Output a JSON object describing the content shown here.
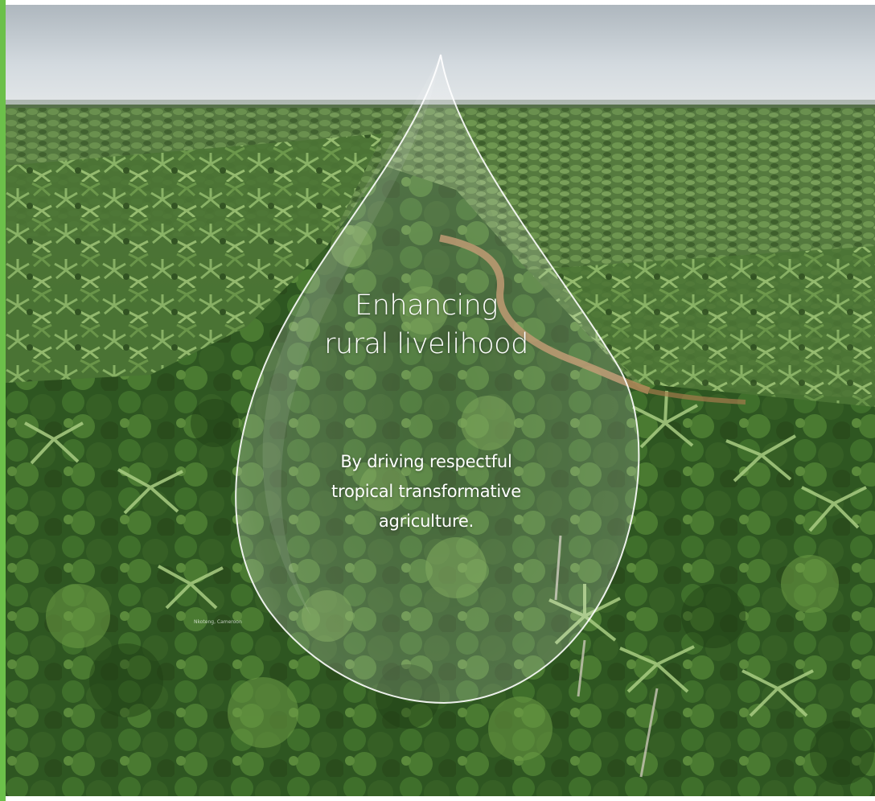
{
  "hero": {
    "headline_lines": [
      "Enhancing",
      "rural livelihood"
    ],
    "subline_lines": [
      "By driving respectful",
      "tropical transformative",
      "agriculture."
    ],
    "photo_credit": "Nkoteng, Cameroon"
  },
  "colors": {
    "accent": "#6cc04a",
    "sky": "#c9d3d9",
    "forest_dark": "#2f4a22",
    "forest_mid": "#4f7436",
    "path": "#b48a5c",
    "text": "#ffffff"
  },
  "icons": {
    "drop": "water-drop-icon"
  }
}
